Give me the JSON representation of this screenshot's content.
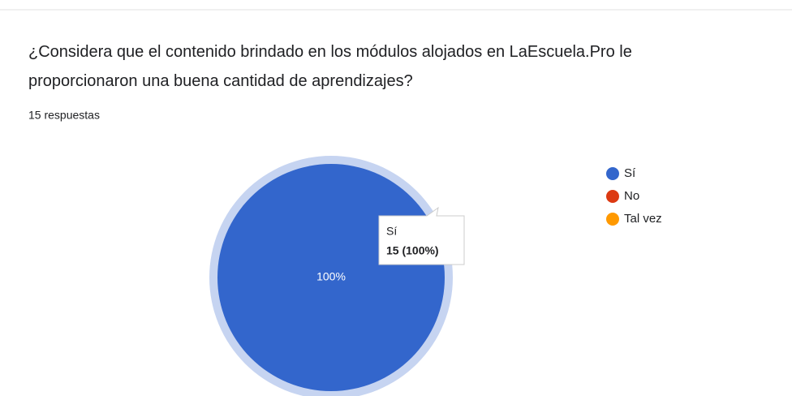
{
  "chart_data": {
    "type": "pie",
    "title": "¿Considera que el contenido brindado en los módulos alojados en LaEscuela.Pro le proporcionaron una buena cantidad de aprendizajes?",
    "subtitle": "15 respuestas",
    "categories": [
      "Sí",
      "No",
      "Tal vez"
    ],
    "values": [
      100,
      0,
      0
    ],
    "value_labels": [
      "100%",
      null,
      null
    ],
    "colors": [
      "#3366cc",
      "#dc3912",
      "#ff9900"
    ],
    "legend": "right",
    "tooltip": {
      "category": "Sí",
      "text": "15 (100%)"
    }
  }
}
